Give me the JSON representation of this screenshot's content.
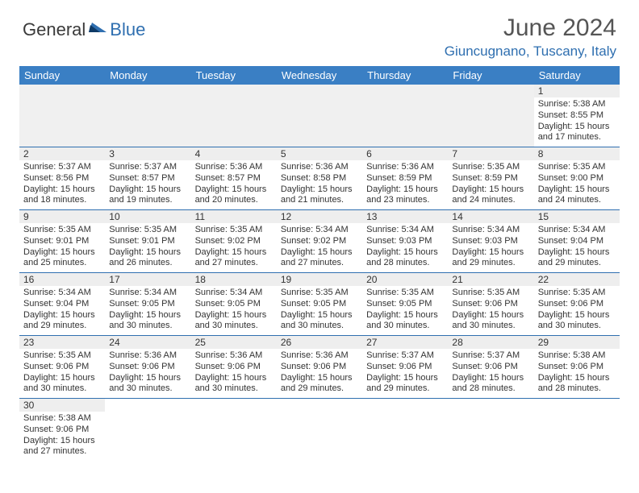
{
  "logo": {
    "part1": "General",
    "part2": "Blue"
  },
  "title": "June 2024",
  "location": "Giuncugnano, Tuscany, Italy",
  "headers": [
    "Sunday",
    "Monday",
    "Tuesday",
    "Wednesday",
    "Thursday",
    "Friday",
    "Saturday"
  ],
  "colors": {
    "header_bg": "#3a7fc4",
    "header_fg": "#ffffff",
    "accent": "#2f6fb0",
    "daynum_bg": "#eeeeee",
    "blank_bg": "#f0f0f0"
  },
  "weeks": [
    [
      null,
      null,
      null,
      null,
      null,
      null,
      {
        "n": "1",
        "sunrise": "Sunrise: 5:38 AM",
        "sunset": "Sunset: 8:55 PM",
        "daylight": "Daylight: 15 hours and 17 minutes."
      }
    ],
    [
      {
        "n": "2",
        "sunrise": "Sunrise: 5:37 AM",
        "sunset": "Sunset: 8:56 PM",
        "daylight": "Daylight: 15 hours and 18 minutes."
      },
      {
        "n": "3",
        "sunrise": "Sunrise: 5:37 AM",
        "sunset": "Sunset: 8:57 PM",
        "daylight": "Daylight: 15 hours and 19 minutes."
      },
      {
        "n": "4",
        "sunrise": "Sunrise: 5:36 AM",
        "sunset": "Sunset: 8:57 PM",
        "daylight": "Daylight: 15 hours and 20 minutes."
      },
      {
        "n": "5",
        "sunrise": "Sunrise: 5:36 AM",
        "sunset": "Sunset: 8:58 PM",
        "daylight": "Daylight: 15 hours and 21 minutes."
      },
      {
        "n": "6",
        "sunrise": "Sunrise: 5:36 AM",
        "sunset": "Sunset: 8:59 PM",
        "daylight": "Daylight: 15 hours and 23 minutes."
      },
      {
        "n": "7",
        "sunrise": "Sunrise: 5:35 AM",
        "sunset": "Sunset: 8:59 PM",
        "daylight": "Daylight: 15 hours and 24 minutes."
      },
      {
        "n": "8",
        "sunrise": "Sunrise: 5:35 AM",
        "sunset": "Sunset: 9:00 PM",
        "daylight": "Daylight: 15 hours and 24 minutes."
      }
    ],
    [
      {
        "n": "9",
        "sunrise": "Sunrise: 5:35 AM",
        "sunset": "Sunset: 9:01 PM",
        "daylight": "Daylight: 15 hours and 25 minutes."
      },
      {
        "n": "10",
        "sunrise": "Sunrise: 5:35 AM",
        "sunset": "Sunset: 9:01 PM",
        "daylight": "Daylight: 15 hours and 26 minutes."
      },
      {
        "n": "11",
        "sunrise": "Sunrise: 5:35 AM",
        "sunset": "Sunset: 9:02 PM",
        "daylight": "Daylight: 15 hours and 27 minutes."
      },
      {
        "n": "12",
        "sunrise": "Sunrise: 5:34 AM",
        "sunset": "Sunset: 9:02 PM",
        "daylight": "Daylight: 15 hours and 27 minutes."
      },
      {
        "n": "13",
        "sunrise": "Sunrise: 5:34 AM",
        "sunset": "Sunset: 9:03 PM",
        "daylight": "Daylight: 15 hours and 28 minutes."
      },
      {
        "n": "14",
        "sunrise": "Sunrise: 5:34 AM",
        "sunset": "Sunset: 9:03 PM",
        "daylight": "Daylight: 15 hours and 29 minutes."
      },
      {
        "n": "15",
        "sunrise": "Sunrise: 5:34 AM",
        "sunset": "Sunset: 9:04 PM",
        "daylight": "Daylight: 15 hours and 29 minutes."
      }
    ],
    [
      {
        "n": "16",
        "sunrise": "Sunrise: 5:34 AM",
        "sunset": "Sunset: 9:04 PM",
        "daylight": "Daylight: 15 hours and 29 minutes."
      },
      {
        "n": "17",
        "sunrise": "Sunrise: 5:34 AM",
        "sunset": "Sunset: 9:05 PM",
        "daylight": "Daylight: 15 hours and 30 minutes."
      },
      {
        "n": "18",
        "sunrise": "Sunrise: 5:34 AM",
        "sunset": "Sunset: 9:05 PM",
        "daylight": "Daylight: 15 hours and 30 minutes."
      },
      {
        "n": "19",
        "sunrise": "Sunrise: 5:35 AM",
        "sunset": "Sunset: 9:05 PM",
        "daylight": "Daylight: 15 hours and 30 minutes."
      },
      {
        "n": "20",
        "sunrise": "Sunrise: 5:35 AM",
        "sunset": "Sunset: 9:05 PM",
        "daylight": "Daylight: 15 hours and 30 minutes."
      },
      {
        "n": "21",
        "sunrise": "Sunrise: 5:35 AM",
        "sunset": "Sunset: 9:06 PM",
        "daylight": "Daylight: 15 hours and 30 minutes."
      },
      {
        "n": "22",
        "sunrise": "Sunrise: 5:35 AM",
        "sunset": "Sunset: 9:06 PM",
        "daylight": "Daylight: 15 hours and 30 minutes."
      }
    ],
    [
      {
        "n": "23",
        "sunrise": "Sunrise: 5:35 AM",
        "sunset": "Sunset: 9:06 PM",
        "daylight": "Daylight: 15 hours and 30 minutes."
      },
      {
        "n": "24",
        "sunrise": "Sunrise: 5:36 AM",
        "sunset": "Sunset: 9:06 PM",
        "daylight": "Daylight: 15 hours and 30 minutes."
      },
      {
        "n": "25",
        "sunrise": "Sunrise: 5:36 AM",
        "sunset": "Sunset: 9:06 PM",
        "daylight": "Daylight: 15 hours and 30 minutes."
      },
      {
        "n": "26",
        "sunrise": "Sunrise: 5:36 AM",
        "sunset": "Sunset: 9:06 PM",
        "daylight": "Daylight: 15 hours and 29 minutes."
      },
      {
        "n": "27",
        "sunrise": "Sunrise: 5:37 AM",
        "sunset": "Sunset: 9:06 PM",
        "daylight": "Daylight: 15 hours and 29 minutes."
      },
      {
        "n": "28",
        "sunrise": "Sunrise: 5:37 AM",
        "sunset": "Sunset: 9:06 PM",
        "daylight": "Daylight: 15 hours and 28 minutes."
      },
      {
        "n": "29",
        "sunrise": "Sunrise: 5:38 AM",
        "sunset": "Sunset: 9:06 PM",
        "daylight": "Daylight: 15 hours and 28 minutes."
      }
    ],
    [
      {
        "n": "30",
        "sunrise": "Sunrise: 5:38 AM",
        "sunset": "Sunset: 9:06 PM",
        "daylight": "Daylight: 15 hours and 27 minutes."
      },
      null,
      null,
      null,
      null,
      null,
      null
    ]
  ]
}
